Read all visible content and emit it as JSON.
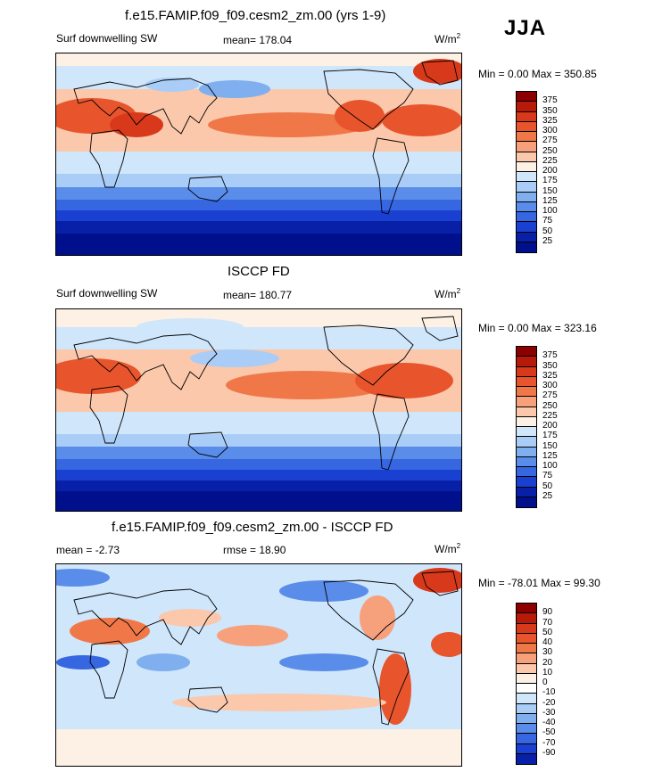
{
  "season": "JJA",
  "panels": [
    {
      "title": "f.e15.FAMIP.f09_f09.cesm2_zm.00 (yrs 1-9)",
      "left_label": "Surf downwelling SW",
      "center_label": "mean= 178.04",
      "units": "W/m",
      "units_sup": "2",
      "minmax": "Min =   0.00 Max = 350.85",
      "levels": [
        "375",
        "350",
        "325",
        "300",
        "275",
        "250",
        "225",
        "200",
        "175",
        "150",
        "125",
        "100",
        "75",
        "50",
        "25"
      ],
      "colors": [
        "#8c0000",
        "#b81a0a",
        "#d8391a",
        "#e8552d",
        "#f07848",
        "#f6a07c",
        "#fbc8ac",
        "#fdf0e4",
        "#cfe6fb",
        "#a9cdf6",
        "#7fafef",
        "#5a8ce9",
        "#3666e0",
        "#1a40d2",
        "#0820a8",
        "#00108c"
      ]
    },
    {
      "title": "ISCCP FD",
      "left_label": "Surf downwelling SW",
      "center_label": "mean= 180.77",
      "units": "W/m",
      "units_sup": "2",
      "minmax": "Min =   0.00 Max = 323.16",
      "levels": [
        "375",
        "350",
        "325",
        "300",
        "275",
        "250",
        "225",
        "200",
        "175",
        "150",
        "125",
        "100",
        "75",
        "50",
        "25"
      ],
      "colors": [
        "#8c0000",
        "#b81a0a",
        "#d8391a",
        "#e8552d",
        "#f07848",
        "#f6a07c",
        "#fbc8ac",
        "#fdf0e4",
        "#cfe6fb",
        "#a9cdf6",
        "#7fafef",
        "#5a8ce9",
        "#3666e0",
        "#1a40d2",
        "#0820a8",
        "#00108c"
      ]
    },
    {
      "title": "f.e15.FAMIP.f09_f09.cesm2_zm.00 - ISCCP FD",
      "left_label": "mean =  -2.73",
      "center_label": "rmse =  18.90",
      "units": "W/m",
      "units_sup": "2",
      "minmax": "Min = -78.01 Max =  99.30",
      "levels": [
        "90",
        "70",
        "50",
        "40",
        "30",
        "20",
        "10",
        "0",
        "-10",
        "-20",
        "-30",
        "-40",
        "-50",
        "-70",
        "-90"
      ],
      "colors": [
        "#8c0000",
        "#b81a0a",
        "#d8391a",
        "#e8552d",
        "#f07848",
        "#f6a07c",
        "#fbc8ac",
        "#fdf0e4",
        "#ffffff",
        "#cfe6fb",
        "#a9cdf6",
        "#7fafef",
        "#5a8ce9",
        "#3666e0",
        "#1a40d2",
        "#0820a8"
      ]
    }
  ]
}
